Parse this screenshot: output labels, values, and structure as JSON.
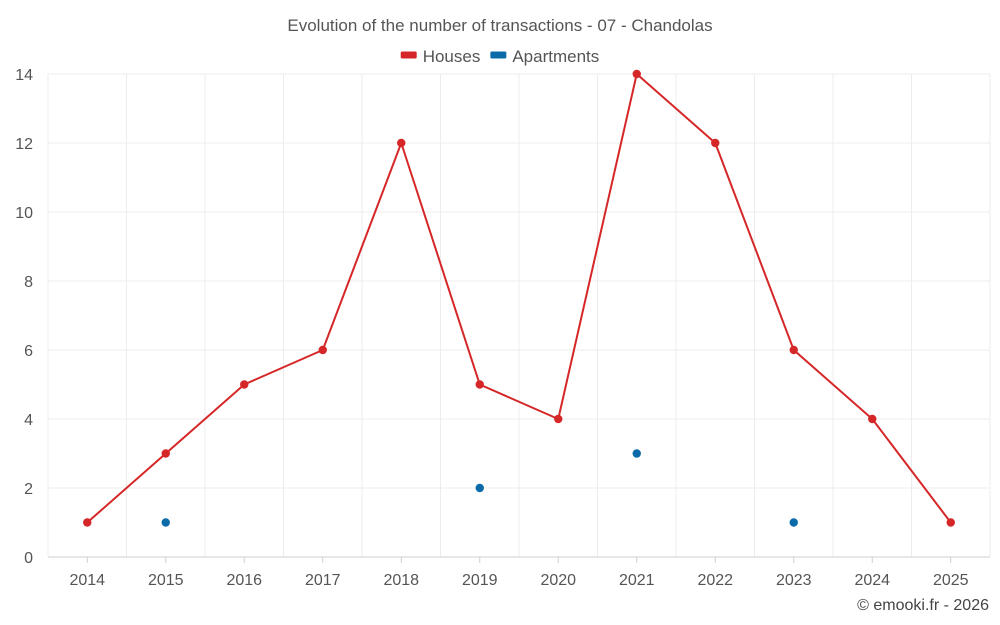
{
  "chart_data": {
    "type": "line",
    "title": "Evolution of the number of transactions - 07 - Chandolas",
    "categories": [
      "2014",
      "2015",
      "2016",
      "2017",
      "2018",
      "2019",
      "2020",
      "2021",
      "2022",
      "2023",
      "2024",
      "2025"
    ],
    "series": [
      {
        "name": "Houses",
        "color": "#d62728",
        "values": [
          1,
          3,
          5,
          6,
          12,
          5,
          4,
          14,
          12,
          6,
          4,
          1
        ],
        "line": true
      },
      {
        "name": "Apartments",
        "color": "#0b6aa8",
        "values": [
          null,
          1,
          null,
          null,
          null,
          2,
          null,
          3,
          null,
          1,
          null,
          null
        ],
        "line": false
      }
    ],
    "ylim": [
      0,
      14
    ],
    "yticks": [
      0,
      2,
      4,
      6,
      8,
      10,
      12,
      14
    ],
    "xlabel": "",
    "ylabel": "",
    "grid": true,
    "legend": "top-center"
  },
  "credit": "© emooki.fr - 2026"
}
